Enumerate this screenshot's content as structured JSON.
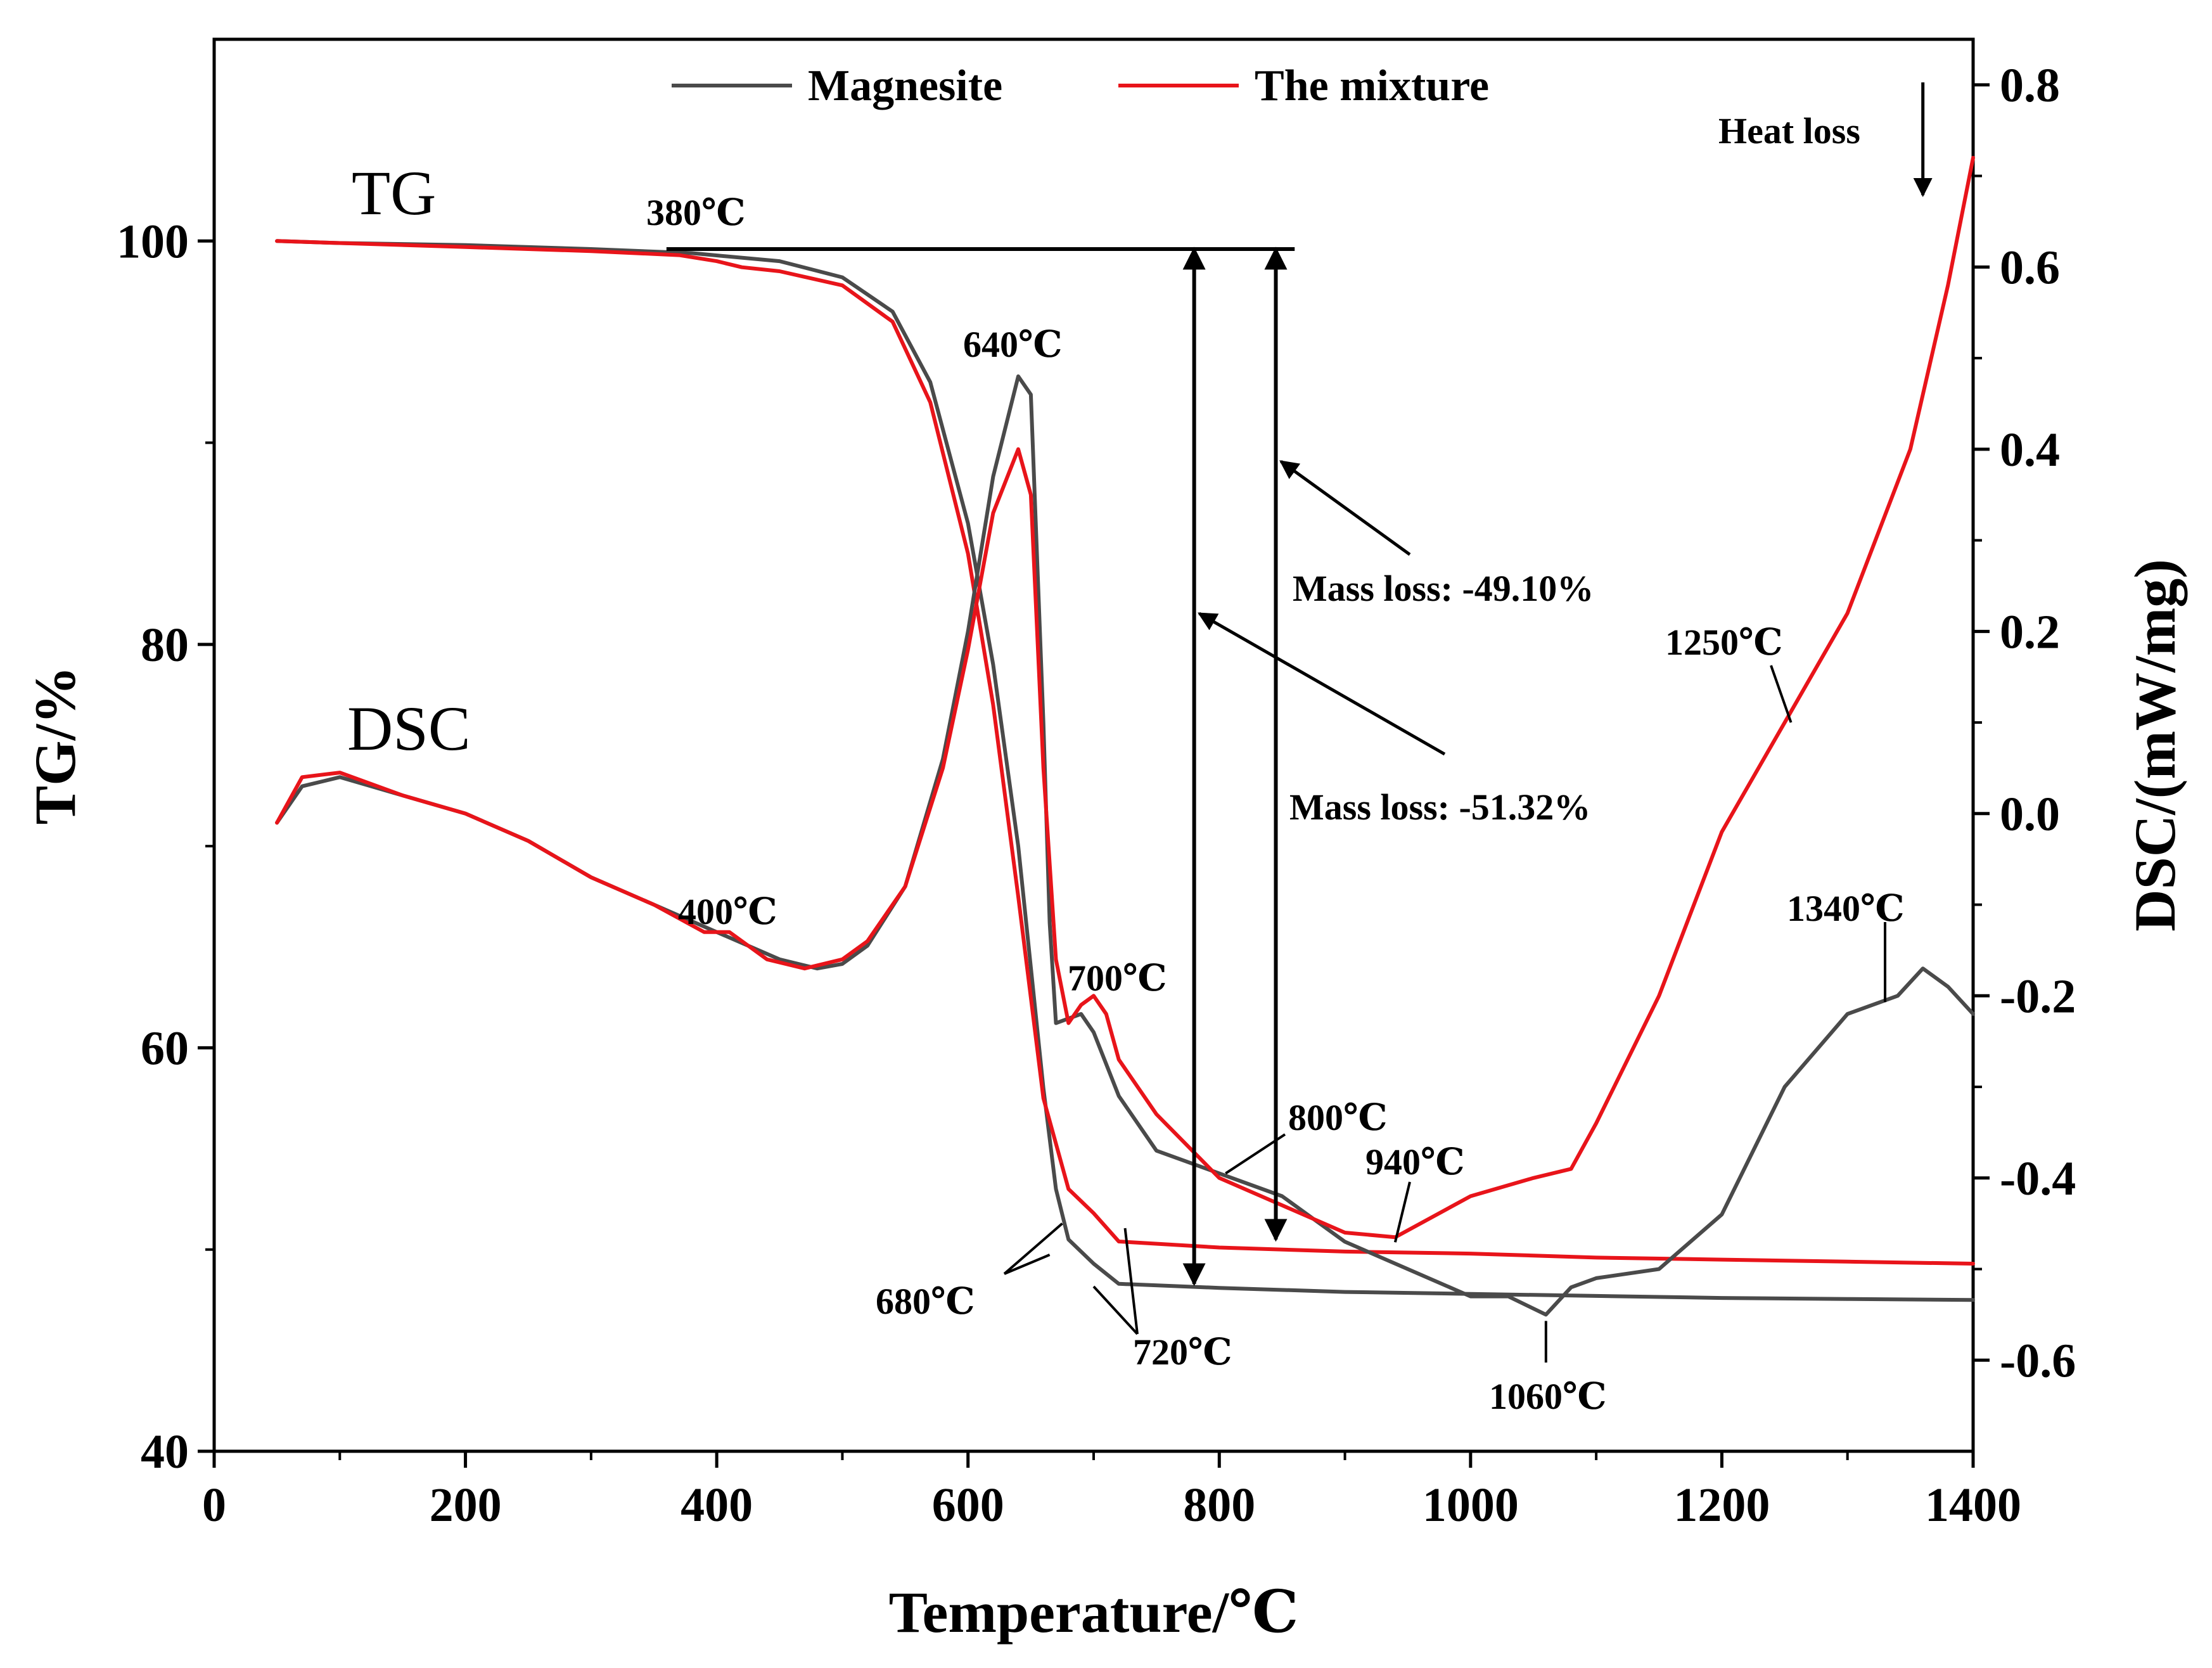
{
  "chart_data": {
    "type": "line",
    "title": "",
    "xlabel": "Temperature/℃",
    "ylabel_left": "TG/%",
    "ylabel_right": "DSC/(mW/mg)",
    "xlim": [
      0,
      1400
    ],
    "ylim_left": [
      40,
      110
    ],
    "ylim_right": [
      -0.7,
      0.85
    ],
    "x_ticks": [
      0,
      200,
      400,
      600,
      800,
      1000,
      1200,
      1400
    ],
    "y_left_ticks": [
      40,
      60,
      80,
      100
    ],
    "y_right_ticks": [
      -0.6,
      -0.4,
      -0.2,
      0.0,
      0.2,
      0.4,
      0.6,
      0.8
    ],
    "y_right_tick_labels": [
      "-0.6",
      "-0.4",
      "-0.2",
      "0.0",
      "0.2",
      "0.4",
      "0.6",
      "0.8"
    ],
    "legend": {
      "position": "top-center",
      "entries": [
        {
          "name": "Magnesite",
          "color": "#4a4a4a"
        },
        {
          "name": "The mixture",
          "color": "#e8141a"
        }
      ]
    },
    "colors": {
      "magnesite": "#4a4a4a",
      "mixture": "#e8141a",
      "axis": "#000000"
    },
    "curve_tags": {
      "tg": "TG",
      "dsc": "DSC"
    },
    "series": [
      {
        "name": "Magnesite",
        "curve": "TG",
        "axis": "left",
        "x": [
          50,
          100,
          200,
          300,
          380,
          450,
          500,
          540,
          570,
          600,
          620,
          640,
          660,
          670,
          680,
          700,
          720,
          800,
          900,
          1000,
          1100,
          1200,
          1300,
          1400
        ],
        "y": [
          100.0,
          99.9,
          99.8,
          99.6,
          99.4,
          99.0,
          98.2,
          96.5,
          93.0,
          86.0,
          79.0,
          70.0,
          58.0,
          53.0,
          50.5,
          49.3,
          48.3,
          48.1,
          47.9,
          47.8,
          47.7,
          47.6,
          47.55,
          47.5
        ]
      },
      {
        "name": "The mixture",
        "curve": "TG",
        "axis": "left",
        "x": [
          50,
          100,
          200,
          300,
          370,
          400,
          420,
          450,
          500,
          540,
          570,
          600,
          620,
          640,
          660,
          680,
          700,
          720,
          800,
          900,
          1000,
          1100,
          1200,
          1300,
          1400
        ],
        "y": [
          100.0,
          99.9,
          99.7,
          99.5,
          99.3,
          99.0,
          98.7,
          98.5,
          97.8,
          96.0,
          92.0,
          84.5,
          77.0,
          67.5,
          57.5,
          53.0,
          51.8,
          50.4,
          50.1,
          49.9,
          49.8,
          49.6,
          49.5,
          49.4,
          49.3
        ]
      },
      {
        "name": "Magnesite",
        "curve": "DSC",
        "axis": "right",
        "x": [
          50,
          70,
          100,
          150,
          200,
          250,
          300,
          350,
          400,
          450,
          480,
          500,
          520,
          550,
          580,
          600,
          620,
          640,
          650,
          660,
          665,
          670,
          680,
          690,
          700,
          720,
          750,
          800,
          850,
          900,
          950,
          1000,
          1030,
          1060,
          1080,
          1100,
          1150,
          1200,
          1250,
          1300,
          1340,
          1360,
          1380,
          1400
        ],
        "y": [
          -0.01,
          0.03,
          0.04,
          0.02,
          0.0,
          -0.03,
          -0.07,
          -0.1,
          -0.13,
          -0.16,
          -0.17,
          -0.165,
          -0.145,
          -0.08,
          0.06,
          0.2,
          0.37,
          0.48,
          0.46,
          0.1,
          -0.12,
          -0.23,
          -0.225,
          -0.22,
          -0.24,
          -0.31,
          -0.37,
          -0.395,
          -0.42,
          -0.47,
          -0.5,
          -0.53,
          -0.53,
          -0.55,
          -0.52,
          -0.51,
          -0.5,
          -0.44,
          -0.3,
          -0.22,
          -0.2,
          -0.17,
          -0.19,
          -0.22
        ]
      },
      {
        "name": "The mixture",
        "curve": "DSC",
        "axis": "right",
        "x": [
          50,
          70,
          100,
          150,
          200,
          250,
          300,
          350,
          390,
          400,
          410,
          420,
          440,
          470,
          500,
          520,
          550,
          580,
          600,
          620,
          640,
          650,
          660,
          670,
          680,
          690,
          700,
          710,
          720,
          750,
          800,
          850,
          900,
          940,
          1000,
          1050,
          1080,
          1100,
          1150,
          1200,
          1250,
          1300,
          1350,
          1380,
          1400
        ],
        "y": [
          -0.01,
          0.04,
          0.045,
          0.02,
          0.0,
          -0.03,
          -0.07,
          -0.1,
          -0.13,
          -0.13,
          -0.13,
          -0.14,
          -0.16,
          -0.17,
          -0.16,
          -0.14,
          -0.08,
          0.05,
          0.18,
          0.33,
          0.4,
          0.35,
          0.05,
          -0.16,
          -0.23,
          -0.21,
          -0.2,
          -0.22,
          -0.27,
          -0.33,
          -0.4,
          -0.43,
          -0.46,
          -0.465,
          -0.42,
          -0.4,
          -0.39,
          -0.34,
          -0.2,
          -0.02,
          0.1,
          0.22,
          0.4,
          0.58,
          0.72
        ]
      }
    ],
    "annotations": [
      {
        "text": "380℃",
        "x": 380,
        "y_left": 99.4
      },
      {
        "text": "640℃",
        "x": 640,
        "y_right": 0.49
      },
      {
        "text": "400℃",
        "x": 400,
        "y_right": -0.13
      },
      {
        "text": "700℃",
        "x": 700,
        "y_right": -0.2
      },
      {
        "text": "800℃",
        "x": 800,
        "y_right": -0.395
      },
      {
        "text": "940℃",
        "x": 940,
        "y_right": -0.465
      },
      {
        "text": "680℃",
        "x": 680,
        "y_right": -0.45
      },
      {
        "text": "720℃",
        "x": 720,
        "y_left": 48.3
      },
      {
        "text": "1060℃",
        "x": 1060,
        "y_right": -0.55
      },
      {
        "text": "1250℃",
        "x": 1250,
        "y_right": 0.1
      },
      {
        "text": "1340℃",
        "x": 1340,
        "y_right": -0.2
      },
      {
        "text": "Heat loss",
        "x": 1360,
        "y_right": 0.78
      }
    ],
    "mass_loss": [
      {
        "label": "Mass loss: -51.32%",
        "x": 780,
        "from": 99.6,
        "to": 48.3
      },
      {
        "label": "Mass loss: -49.10%",
        "x": 845,
        "from": 99.6,
        "to": 50.5
      }
    ]
  }
}
